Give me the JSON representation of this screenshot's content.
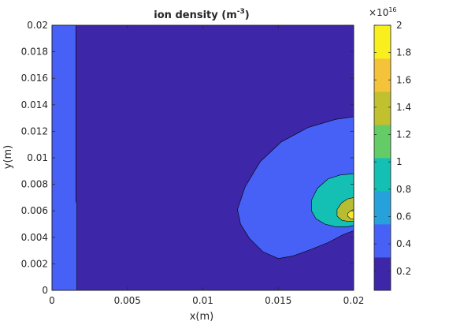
{
  "chart_data": {
    "type": "contour",
    "title": "ion density (m",
    "title_exponent": "-3",
    "title_close": ")",
    "xlabel": "x(m)",
    "ylabel": "y(m)",
    "xlim": [
      0,
      0.02
    ],
    "ylim": [
      0,
      0.02
    ],
    "x_ticks": [
      0,
      0.005,
      0.01,
      0.015,
      0.02
    ],
    "x_tick_labels": [
      "0",
      "0.005",
      "0.01",
      "0.015",
      "0.02"
    ],
    "y_ticks": [
      0,
      0.002,
      0.004,
      0.006,
      0.008,
      0.01,
      0.012,
      0.014,
      0.016,
      0.018,
      0.02
    ],
    "y_tick_labels": [
      "0",
      "0.002",
      "0.004",
      "0.006",
      "0.008",
      "0.01",
      "0.012",
      "0.014",
      "0.016",
      "0.018",
      "0.02"
    ],
    "colorbar": {
      "range": [
        0.06,
        2.0
      ],
      "ticks": [
        0.2,
        0.4,
        0.6,
        0.8,
        1.0,
        1.2,
        1.4,
        1.6,
        1.8,
        2.0
      ],
      "tick_labels": [
        "0.2",
        "0.4",
        "0.6",
        "0.8",
        "1",
        "1.2",
        "1.4",
        "1.6",
        "1.8",
        "2"
      ],
      "exponent_base": "×10",
      "exponent_power": "16",
      "colors": [
        "#3e26a8",
        "#4760f5",
        "#26a1db",
        "#14bfb4",
        "#64cc66",
        "#c1c02f",
        "#f5c33a",
        "#f9ef1f"
      ]
    },
    "regions": [
      {
        "name": "background",
        "level_color": "#3e26a8",
        "points": [
          [
            0,
            0
          ],
          [
            0.02,
            0
          ],
          [
            0.02,
            0.02
          ],
          [
            0,
            0.02
          ]
        ]
      },
      {
        "name": "left-strip",
        "level_color": "#4760f5",
        "points": [
          [
            0,
            0
          ],
          [
            0.00165,
            0
          ],
          [
            0.00165,
            0.0066
          ],
          [
            0.00158,
            0.0067
          ],
          [
            0.00158,
            0.02
          ],
          [
            0,
            0.02
          ]
        ]
      },
      {
        "name": "outer-lobe",
        "level_color": "#4760f5",
        "points": [
          [
            0.02,
            0.0131
          ],
          [
            0.0188,
            0.0129
          ],
          [
            0.017,
            0.0123
          ],
          [
            0.0152,
            0.0112
          ],
          [
            0.0138,
            0.0097
          ],
          [
            0.0128,
            0.0078
          ],
          [
            0.0123,
            0.0061
          ],
          [
            0.0125,
            0.005
          ],
          [
            0.0131,
            0.0039
          ],
          [
            0.014,
            0.0029
          ],
          [
            0.015,
            0.0024
          ],
          [
            0.016,
            0.0026
          ],
          [
            0.0172,
            0.0031
          ],
          [
            0.0183,
            0.0036
          ],
          [
            0.0193,
            0.0042
          ],
          [
            0.02,
            0.0045
          ]
        ]
      },
      {
        "name": "middle-lobe",
        "level_color": "#14bfb4",
        "points": [
          [
            0.02,
            0.0088
          ],
          [
            0.0191,
            0.0087
          ],
          [
            0.0183,
            0.0084
          ],
          [
            0.0176,
            0.0077
          ],
          [
            0.0172,
            0.0068
          ],
          [
            0.0172,
            0.006
          ],
          [
            0.0175,
            0.0054
          ],
          [
            0.0181,
            0.005
          ],
          [
            0.0188,
            0.0048
          ],
          [
            0.0196,
            0.0048
          ],
          [
            0.02,
            0.0049
          ]
        ]
      },
      {
        "name": "inner-lobe",
        "level_color": "#b7bd33",
        "points": [
          [
            0.02,
            0.007
          ],
          [
            0.0196,
            0.0069
          ],
          [
            0.0192,
            0.0066
          ],
          [
            0.0189,
            0.0061
          ],
          [
            0.0189,
            0.0056
          ],
          [
            0.0192,
            0.0053
          ],
          [
            0.0196,
            0.0052
          ],
          [
            0.02,
            0.0052
          ]
        ]
      },
      {
        "name": "core",
        "level_color": "#f7e735",
        "points": [
          [
            0.02,
            0.0061
          ],
          [
            0.0198,
            0.006
          ],
          [
            0.0196,
            0.0058
          ],
          [
            0.0196,
            0.0056
          ],
          [
            0.0198,
            0.0054
          ],
          [
            0.02,
            0.0054
          ]
        ]
      }
    ]
  }
}
